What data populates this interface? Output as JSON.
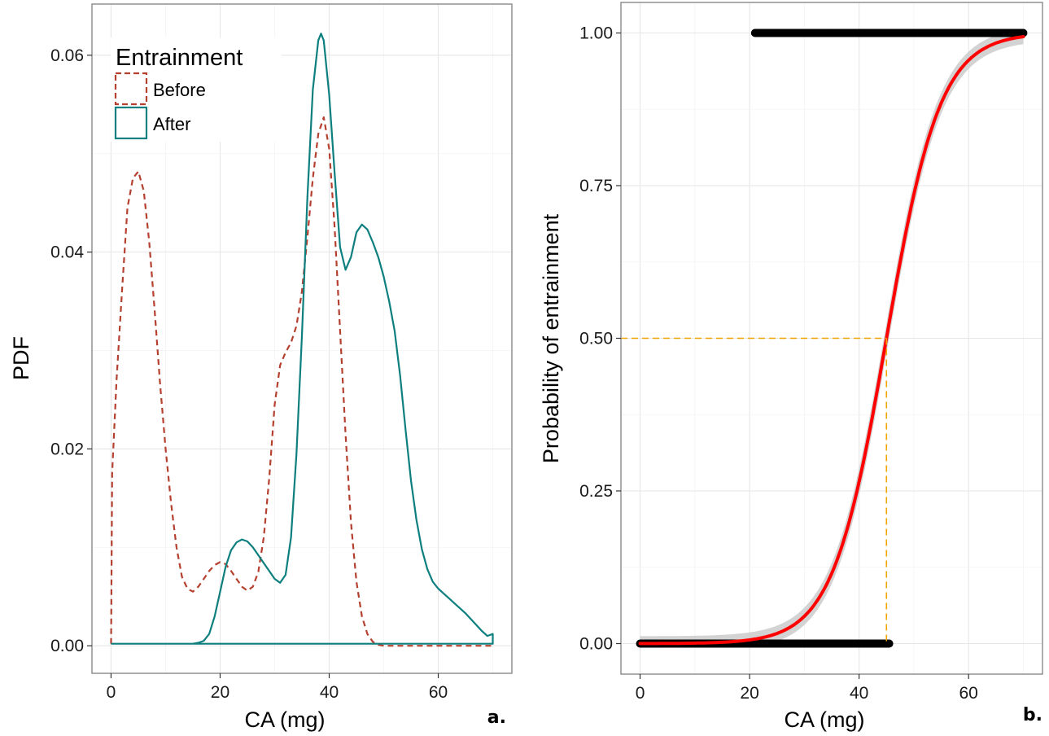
{
  "chart_data": [
    {
      "type": "line",
      "panel_label": "a.",
      "xlabel": "CA (mg)",
      "ylabel": "PDF",
      "xlim": [
        -3.5,
        73.5
      ],
      "ylim": [
        -0.0028,
        0.0652
      ],
      "x_ticks": [
        0,
        20,
        40,
        60
      ],
      "y_ticks": [
        0.0,
        0.02,
        0.04,
        0.06
      ],
      "grid": true,
      "legend": {
        "title": "Entrainment",
        "placement": "top-left",
        "entries": [
          {
            "label": "Before",
            "color": "#b5402f",
            "dash": "dashed"
          },
          {
            "label": "After",
            "color": "#0e7f7f",
            "dash": "solid"
          }
        ]
      },
      "series": [
        {
          "name": "Before",
          "color": "#b5402f",
          "dash": "dashed",
          "points": [
            [
              0,
              0.0002
            ],
            [
              0.2,
              0.0175
            ],
            [
              1,
              0.027
            ],
            [
              2,
              0.036
            ],
            [
              3,
              0.0445
            ],
            [
              4,
              0.0475
            ],
            [
              5,
              0.0482
            ],
            [
              6,
              0.0462
            ],
            [
              7,
              0.041
            ],
            [
              8,
              0.034
            ],
            [
              9,
              0.0265
            ],
            [
              10,
              0.02
            ],
            [
              11,
              0.0145
            ],
            [
              12,
              0.01
            ],
            [
              13,
              0.007
            ],
            [
              14,
              0.0058
            ],
            [
              15,
              0.0055
            ],
            [
              16,
              0.006
            ],
            [
              17,
              0.0068
            ],
            [
              18,
              0.0076
            ],
            [
              19,
              0.0082
            ],
            [
              20,
              0.0085
            ],
            [
              21,
              0.0083
            ],
            [
              22,
              0.0076
            ],
            [
              23,
              0.0068
            ],
            [
              24,
              0.006
            ],
            [
              25,
              0.0056
            ],
            [
              26,
              0.006
            ],
            [
              27,
              0.0075
            ],
            [
              28,
              0.011
            ],
            [
              29,
              0.017
            ],
            [
              30,
              0.0245
            ],
            [
              31,
              0.0285
            ],
            [
              32,
              0.0298
            ],
            [
              33,
              0.0308
            ],
            [
              34,
              0.0325
            ],
            [
              35,
              0.036
            ],
            [
              36,
              0.0415
            ],
            [
              37,
              0.0475
            ],
            [
              38,
              0.052
            ],
            [
              39,
              0.0537
            ],
            [
              40,
              0.0505
            ],
            [
              41,
              0.0425
            ],
            [
              42,
              0.032
            ],
            [
              43,
              0.0215
            ],
            [
              44,
              0.0125
            ],
            [
              45,
              0.0065
            ],
            [
              46,
              0.003
            ],
            [
              47,
              0.0012
            ],
            [
              48,
              0.0004
            ],
            [
              49,
              0.0001
            ],
            [
              50,
              0.0
            ],
            [
              60,
              0.0
            ],
            [
              70,
              0.0
            ]
          ]
        },
        {
          "name": "After",
          "color": "#0e7f7f",
          "dash": "solid",
          "points": [
            [
              0,
              0.0002
            ],
            [
              15,
              0.0002
            ],
            [
              16,
              0.0003
            ],
            [
              17,
              0.0005
            ],
            [
              18,
              0.0012
            ],
            [
              19,
              0.003
            ],
            [
              20,
              0.0055
            ],
            [
              21,
              0.008
            ],
            [
              22,
              0.0097
            ],
            [
              23,
              0.0105
            ],
            [
              24,
              0.0108
            ],
            [
              25,
              0.0106
            ],
            [
              26,
              0.01
            ],
            [
              27,
              0.0092
            ],
            [
              28,
              0.0084
            ],
            [
              29,
              0.0076
            ],
            [
              30,
              0.0068
            ],
            [
              31,
              0.0064
            ],
            [
              32,
              0.0072
            ],
            [
              33,
              0.011
            ],
            [
              34,
              0.0195
            ],
            [
              35,
              0.0315
            ],
            [
              36,
              0.0455
            ],
            [
              37,
              0.0565
            ],
            [
              38,
              0.0615
            ],
            [
              38.5,
              0.0622
            ],
            [
              39,
              0.0615
            ],
            [
              40,
              0.056
            ],
            [
              41,
              0.048
            ],
            [
              42,
              0.0405
            ],
            [
              43,
              0.0382
            ],
            [
              44,
              0.0395
            ],
            [
              45,
              0.042
            ],
            [
              46,
              0.0428
            ],
            [
              47,
              0.0423
            ],
            [
              48,
              0.041
            ],
            [
              49,
              0.0395
            ],
            [
              50,
              0.0375
            ],
            [
              51,
              0.035
            ],
            [
              52,
              0.032
            ],
            [
              53,
              0.0275
            ],
            [
              54,
              0.022
            ],
            [
              55,
              0.0168
            ],
            [
              56,
              0.0128
            ],
            [
              57,
              0.0098
            ],
            [
              58,
              0.0078
            ],
            [
              59,
              0.0065
            ],
            [
              60,
              0.0058
            ],
            [
              61,
              0.0053
            ],
            [
              62,
              0.0048
            ],
            [
              63,
              0.0043
            ],
            [
              64,
              0.0038
            ],
            [
              65,
              0.0033
            ],
            [
              66,
              0.0027
            ],
            [
              67,
              0.0021
            ],
            [
              68,
              0.0015
            ],
            [
              69,
              0.001
            ],
            [
              70,
              0.0012
            ],
            [
              70,
              0.0002
            ],
            [
              0,
              0.0002
            ]
          ]
        }
      ]
    },
    {
      "type": "scatter",
      "panel_label": "b.",
      "xlabel": "CA (mg)",
      "ylabel": "Probability of entrainment",
      "xlim": [
        -3.5,
        73.5
      ],
      "ylim": [
        -0.05,
        1.05
      ],
      "x_ticks": [
        0,
        20,
        40,
        60
      ],
      "y_ticks": [
        0.0,
        0.25,
        0.5,
        0.75,
        1.0
      ],
      "grid": true,
      "points_at_1": {
        "x_min": 21,
        "x_max": 70,
        "y": 1.0
      },
      "points_at_0": {
        "x_min": 0,
        "x_max": 45.5,
        "y": 0.0
      },
      "fit": {
        "model": "logistic",
        "x50": 45,
        "scale": 4.9,
        "x_range": [
          0,
          70
        ],
        "color": "#ff0000",
        "ci_color": "#c8c8c8"
      },
      "reference_line": {
        "x": 45,
        "y": 0.5,
        "color": "#f0a500",
        "dash": "dashed"
      }
    }
  ]
}
